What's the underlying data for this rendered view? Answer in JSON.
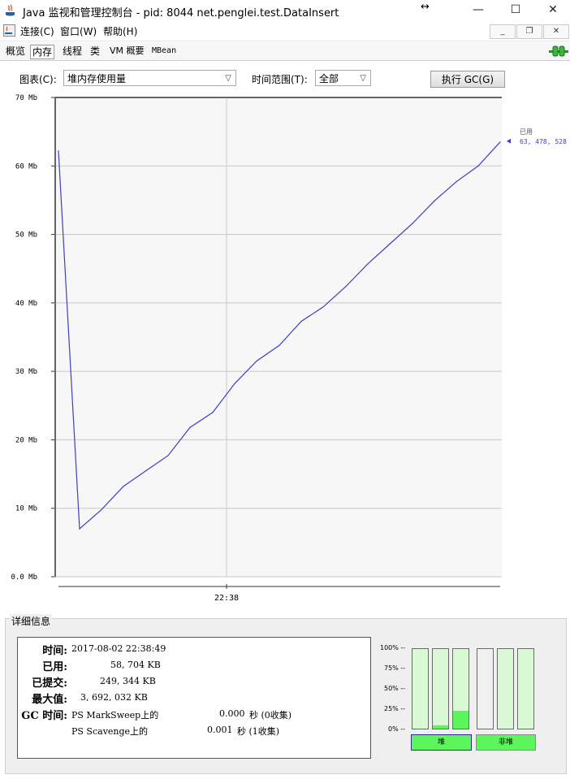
{
  "window": {
    "title": "Java 监视和管理控制台 - pid: 8044 net.penglei.test.DataInsert",
    "minimize_glyph": "—",
    "maximize_glyph": "☐",
    "close_glyph": "✕",
    "resize_glyph": "↔"
  },
  "menubar": {
    "items": [
      {
        "label": "连接(C)"
      },
      {
        "label": "窗口(W)"
      },
      {
        "label": "帮助(H)"
      }
    ],
    "mdi_min": "_",
    "mdi_restore": "❐",
    "mdi_close": "✕"
  },
  "tabs": [
    {
      "label": "概览"
    },
    {
      "label": "内存"
    },
    {
      "label": "线程"
    },
    {
      "label": "类"
    },
    {
      "label": "VM 概要"
    },
    {
      "label": "MBean"
    }
  ],
  "active_tab": "内存",
  "controls": {
    "chart_label": "图表(C):",
    "chart_value": "堆内存使用量",
    "range_label": "时间范围(T):",
    "range_value": "全部",
    "gc_button": "执行 GC(G)"
  },
  "chart_data": {
    "type": "line",
    "y_ticks": [
      "0.0 Mb",
      "10 Mb",
      "20 Mb",
      "30 Mb",
      "40 Mb",
      "50 Mb",
      "60 Mb",
      "70 Mb"
    ],
    "ylim": [
      0,
      70
    ],
    "x_tick": "22:38",
    "series": [
      {
        "name": "已用",
        "color": "#3f3fbf",
        "values": [
          62.2,
          7.0,
          9.8,
          13.2,
          15.5,
          17.7,
          21.8,
          24.0,
          28.2,
          31.5,
          33.8,
          37.3,
          39.4,
          42.4,
          45.7,
          48.6,
          51.6,
          54.9,
          57.7,
          60.0,
          63.5
        ]
      }
    ],
    "current_label": "已用",
    "current_value": "63, 478, 528",
    "grid": true
  },
  "details": {
    "title": "详细信息",
    "time_label": "时间:",
    "time_value": "2017-08-02 22:38:49",
    "used_label": "已用:",
    "used_value": "58, 704 KB",
    "committed_label": "已提交:",
    "committed_value": "249, 344 KB",
    "max_label": "最大值:",
    "max_value": "3, 692, 032 KB",
    "gc_label": "GC 时间:",
    "gc_rows": [
      {
        "name": "PS MarkSweep上的",
        "time": "0.000",
        "unit": "秒 (0收集)"
      },
      {
        "name": "PS Scavenge上的",
        "time": "0.001",
        "unit": "秒 (1收集)"
      }
    ]
  },
  "gauges": {
    "pct_labels": [
      "100% --",
      "75% --",
      "50% --",
      "25% --",
      "0% --"
    ],
    "heap_label": "堆",
    "nonheap_label": "非堆",
    "heap_fills": [
      0.0,
      0.04,
      0.22
    ],
    "nonheap_fills": [
      0.0,
      0.0,
      0.0
    ],
    "fill_color": "#5cf55c",
    "empty_color": "#d9f9d4"
  }
}
